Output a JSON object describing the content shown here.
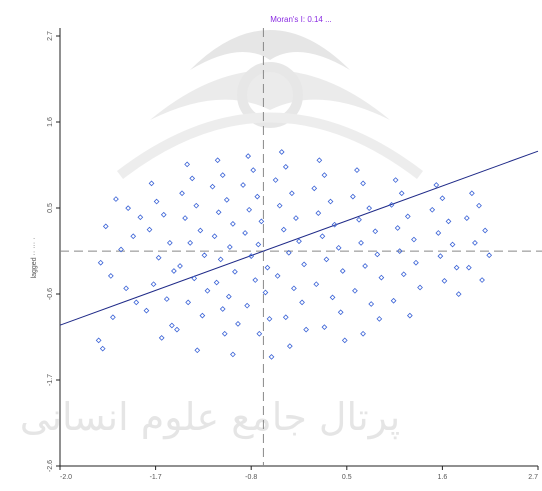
{
  "chart_data": {
    "type": "scatter",
    "title": "Moran's I: 0.14 ...",
    "xlabel": "",
    "ylabel": "lagged ·· ··· ·",
    "xlim": [
      -2.0,
      2.7
    ],
    "ylim": [
      -2.6,
      2.7
    ],
    "x_ticks": [
      "-2.0",
      "-1.7",
      "-0.8",
      "0.5",
      "1.6",
      "2.7"
    ],
    "y_ticks": [
      "2.7",
      "1.6",
      "0.5",
      "-0.6",
      "-1.7",
      "-2.6"
    ],
    "mean_x": 0.0,
    "mean_y": 0.0,
    "regression": {
      "slope": 0.14,
      "intercept": 0.0
    },
    "point_style": "blue open diamonds",
    "colors": {
      "points": "#3b63d6",
      "regression_line": "#1f2a88",
      "mean_lines": "#888888",
      "title": "#8a2be2",
      "axes": "#222222"
    },
    "points": [
      [
        -1.45,
        0.63
      ],
      [
        -1.33,
        0.52
      ],
      [
        -1.21,
        0.41
      ],
      [
        -1.55,
        0.3
      ],
      [
        -1.28,
        0.18
      ],
      [
        -1.4,
        0.02
      ],
      [
        -1.6,
        -0.14
      ],
      [
        -1.5,
        -0.3
      ],
      [
        -1.35,
        -0.45
      ],
      [
        -1.25,
        -0.62
      ],
      [
        -1.48,
        -0.8
      ],
      [
        -1.62,
        -1.08
      ],
      [
        -1.58,
        -1.18
      ],
      [
        -1.1,
        0.82
      ],
      [
        -1.05,
        0.6
      ],
      [
        -0.98,
        0.44
      ],
      [
        -1.12,
        0.26
      ],
      [
        -0.92,
        0.1
      ],
      [
        -1.03,
        -0.08
      ],
      [
        -0.88,
        -0.24
      ],
      [
        -1.08,
        -0.4
      ],
      [
        -0.95,
        -0.58
      ],
      [
        -1.15,
        -0.72
      ],
      [
        -0.9,
        -0.9
      ],
      [
        -1.0,
        -1.05
      ],
      [
        -0.75,
        1.05
      ],
      [
        -0.7,
        0.88
      ],
      [
        -0.8,
        0.7
      ],
      [
        -0.66,
        0.55
      ],
      [
        -0.77,
        0.4
      ],
      [
        -0.62,
        0.25
      ],
      [
        -0.72,
        0.1
      ],
      [
        -0.58,
        -0.05
      ],
      [
        -0.82,
        -0.18
      ],
      [
        -0.68,
        -0.33
      ],
      [
        -0.55,
        -0.48
      ],
      [
        -0.74,
        -0.62
      ],
      [
        -0.6,
        -0.78
      ],
      [
        -0.85,
        -0.95
      ],
      [
        -0.65,
        -1.2
      ],
      [
        -0.45,
        1.1
      ],
      [
        -0.4,
        0.92
      ],
      [
        -0.5,
        0.78
      ],
      [
        -0.36,
        0.62
      ],
      [
        -0.44,
        0.47
      ],
      [
        -0.3,
        0.33
      ],
      [
        -0.48,
        0.18
      ],
      [
        -0.33,
        0.05
      ],
      [
        -0.42,
        -0.1
      ],
      [
        -0.28,
        -0.25
      ],
      [
        -0.46,
        -0.38
      ],
      [
        -0.34,
        -0.55
      ],
      [
        -0.4,
        -0.7
      ],
      [
        -0.25,
        -0.88
      ],
      [
        -0.38,
        -1.0
      ],
      [
        -0.3,
        -1.25
      ],
      [
        -0.15,
        1.15
      ],
      [
        -0.1,
        0.98
      ],
      [
        -0.2,
        0.8
      ],
      [
        -0.06,
        0.66
      ],
      [
        -0.14,
        0.5
      ],
      [
        -0.02,
        0.36
      ],
      [
        -0.18,
        0.22
      ],
      [
        -0.05,
        0.08
      ],
      [
        -0.12,
        -0.06
      ],
      [
        0.04,
        -0.2
      ],
      [
        -0.08,
        -0.35
      ],
      [
        0.02,
        -0.5
      ],
      [
        -0.16,
        -0.66
      ],
      [
        0.06,
        -0.82
      ],
      [
        -0.04,
        -1.0
      ],
      [
        0.08,
        -1.28
      ],
      [
        0.18,
        1.2
      ],
      [
        0.22,
        1.02
      ],
      [
        0.12,
        0.86
      ],
      [
        0.28,
        0.7
      ],
      [
        0.16,
        0.55
      ],
      [
        0.32,
        0.4
      ],
      [
        0.2,
        0.26
      ],
      [
        0.35,
        0.12
      ],
      [
        0.25,
        -0.02
      ],
      [
        0.4,
        -0.16
      ],
      [
        0.14,
        -0.3
      ],
      [
        0.3,
        -0.45
      ],
      [
        0.38,
        -0.62
      ],
      [
        0.22,
        -0.8
      ],
      [
        0.42,
        -0.95
      ],
      [
        0.26,
        -1.15
      ],
      [
        0.55,
        1.1
      ],
      [
        0.6,
        0.92
      ],
      [
        0.5,
        0.76
      ],
      [
        0.66,
        0.6
      ],
      [
        0.54,
        0.46
      ],
      [
        0.7,
        0.32
      ],
      [
        0.58,
        0.18
      ],
      [
        0.74,
        0.04
      ],
      [
        0.62,
        -0.1
      ],
      [
        0.78,
        -0.24
      ],
      [
        0.52,
        -0.4
      ],
      [
        0.68,
        -0.56
      ],
      [
        0.76,
        -0.74
      ],
      [
        0.6,
        -0.92
      ],
      [
        0.8,
        -1.08
      ],
      [
        0.92,
        0.98
      ],
      [
        0.98,
        0.82
      ],
      [
        0.88,
        0.66
      ],
      [
        1.04,
        0.52
      ],
      [
        0.94,
        0.38
      ],
      [
        1.1,
        0.24
      ],
      [
        0.96,
        0.1
      ],
      [
        1.12,
        -0.04
      ],
      [
        1.0,
        -0.18
      ],
      [
        1.16,
        -0.32
      ],
      [
        0.9,
        -0.48
      ],
      [
        1.06,
        -0.64
      ],
      [
        1.14,
        -0.82
      ],
      [
        0.98,
        -1.0
      ],
      [
        1.3,
        0.86
      ],
      [
        1.36,
        0.7
      ],
      [
        1.26,
        0.56
      ],
      [
        1.42,
        0.42
      ],
      [
        1.32,
        0.28
      ],
      [
        1.48,
        0.14
      ],
      [
        1.34,
        0.0
      ],
      [
        1.5,
        -0.14
      ],
      [
        1.38,
        -0.28
      ],
      [
        1.54,
        -0.44
      ],
      [
        1.28,
        -0.6
      ],
      [
        1.44,
        -0.78
      ],
      [
        1.7,
        0.8
      ],
      [
        1.76,
        0.64
      ],
      [
        1.66,
        0.5
      ],
      [
        1.82,
        0.36
      ],
      [
        1.72,
        0.22
      ],
      [
        1.86,
        0.08
      ],
      [
        1.74,
        -0.06
      ],
      [
        1.9,
        -0.2
      ],
      [
        1.78,
        -0.36
      ],
      [
        1.92,
        -0.52
      ],
      [
        2.05,
        0.7
      ],
      [
        2.12,
        0.55
      ],
      [
        2.0,
        0.4
      ],
      [
        2.18,
        0.25
      ],
      [
        2.08,
        0.1
      ],
      [
        2.22,
        -0.05
      ],
      [
        2.02,
        -0.2
      ],
      [
        2.15,
        -0.35
      ]
    ],
    "watermark": "پرتال جامع علوم انسانی"
  }
}
